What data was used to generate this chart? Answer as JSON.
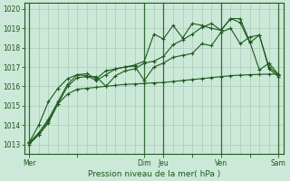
{
  "bg_color": "#cce8d8",
  "grid_color": "#aaccb8",
  "line_color": "#1a5c1a",
  "title": "Pression niveau de la mer( hPa )",
  "ylim": [
    1012.5,
    1020.3
  ],
  "yticks": [
    1013,
    1014,
    1015,
    1016,
    1017,
    1018,
    1019,
    1020
  ],
  "day_labels": [
    "Mer",
    "",
    "Dim",
    "Jeu",
    "",
    "Ven",
    "",
    "Sam"
  ],
  "day_positions": [
    0,
    5,
    12,
    14,
    17,
    20,
    23,
    26
  ],
  "vline_positions": [
    0,
    12,
    14,
    20,
    26
  ],
  "num_points": 27,
  "series1": [
    1013.0,
    1013.5,
    1014.2,
    1015.1,
    1015.6,
    1015.85,
    1015.9,
    1015.95,
    1016.0,
    1016.05,
    1016.1,
    1016.12,
    1016.15,
    1016.18,
    1016.2,
    1016.25,
    1016.3,
    1016.35,
    1016.4,
    1016.45,
    1016.5,
    1016.55,
    1016.58,
    1016.6,
    1016.62,
    1016.63,
    1016.63
  ],
  "series2": [
    1013.1,
    1014.0,
    1015.2,
    1015.9,
    1016.4,
    1016.6,
    1016.55,
    1016.3,
    1016.6,
    1016.9,
    1017.0,
    1017.05,
    1016.3,
    1017.0,
    1017.2,
    1017.5,
    1017.6,
    1017.7,
    1018.2,
    1018.1,
    1018.8,
    1019.0,
    1018.2,
    1018.55,
    1018.65,
    1016.9,
    1016.5
  ],
  "series3": [
    1013.05,
    1013.5,
    1014.1,
    1015.1,
    1016.0,
    1016.45,
    1016.5,
    1016.5,
    1016.0,
    1016.55,
    1016.8,
    1016.9,
    1017.2,
    1017.3,
    1017.55,
    1018.15,
    1018.4,
    1018.7,
    1019.05,
    1019.25,
    1018.9,
    1019.5,
    1019.3,
    1018.25,
    1018.65,
    1017.0,
    1016.6
  ],
  "series4": [
    1013.1,
    1013.6,
    1014.3,
    1015.2,
    1016.1,
    1016.6,
    1016.65,
    1016.4,
    1016.8,
    1016.9,
    1017.0,
    1017.1,
    1017.3,
    1018.7,
    1018.45,
    1019.15,
    1018.5,
    1019.25,
    1019.15,
    1019.0,
    1018.9,
    1019.5,
    1019.5,
    1018.3,
    1016.85,
    1017.2,
    1016.6
  ]
}
